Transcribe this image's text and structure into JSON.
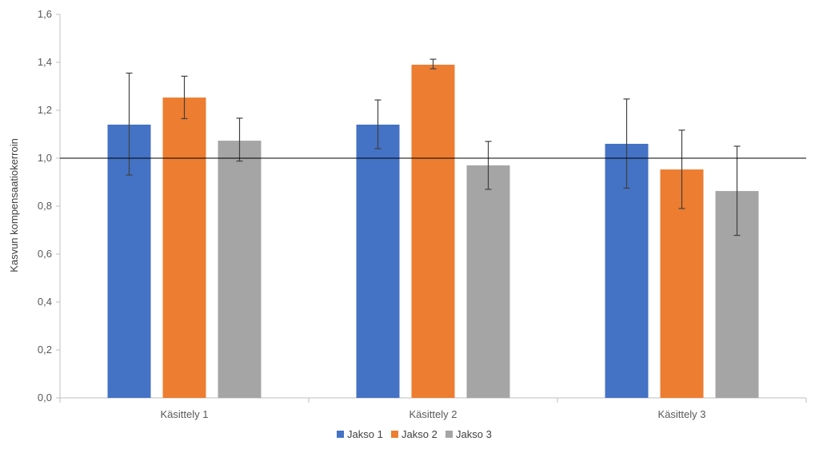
{
  "chart_data": {
    "type": "bar",
    "title": "",
    "xlabel": "",
    "ylabel": "Kasvun kompensaatiokerroin",
    "ylim": [
      0,
      1.6
    ],
    "yticks": [
      "0,0",
      "0,2",
      "0,4",
      "0,6",
      "0,8",
      "1,0",
      "1,2",
      "1,4",
      "1,6"
    ],
    "categories": [
      "Käsittely 1",
      "Käsittely 2",
      "Käsittely 3"
    ],
    "series": [
      {
        "name": "Jakso 1",
        "color": "#4472C4",
        "values": [
          1.14,
          1.14,
          1.06
        ],
        "error_low": [
          0.93,
          1.04,
          0.875
        ],
        "error_high": [
          1.355,
          1.243,
          1.247
        ]
      },
      {
        "name": "Jakso 2",
        "color": "#ED7D31",
        "values": [
          1.253,
          1.39,
          0.953
        ],
        "error_low": [
          1.165,
          1.373,
          0.79
        ],
        "error_high": [
          1.342,
          1.413,
          1.117
        ]
      },
      {
        "name": "Jakso 3",
        "color": "#A5A5A5",
        "values": [
          1.073,
          0.97,
          0.863
        ],
        "error_low": [
          0.988,
          0.87,
          0.678
        ],
        "error_high": [
          1.167,
          1.07,
          1.05
        ]
      }
    ],
    "reference_line": 1.0,
    "legend_position": "bottom",
    "grid": false
  }
}
